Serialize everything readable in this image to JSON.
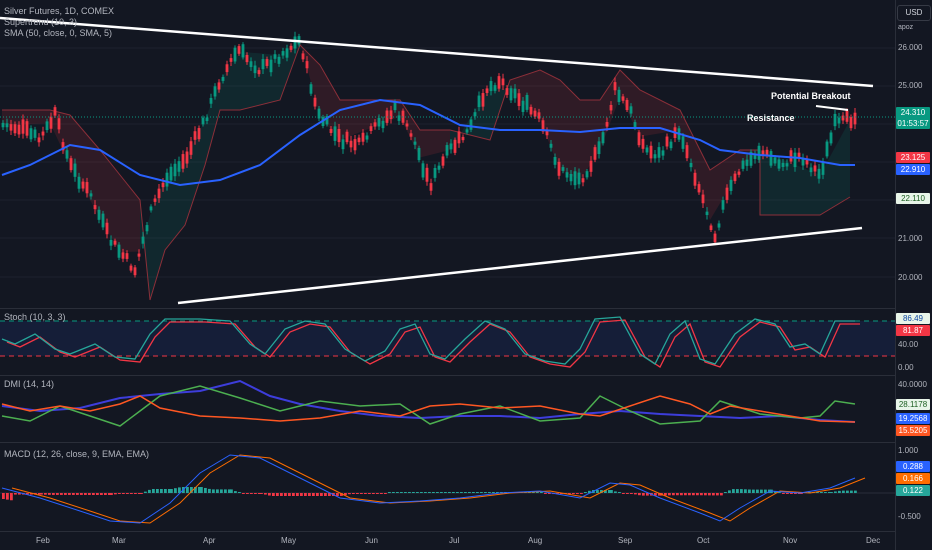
{
  "legend": {
    "main": "Silver Futures, 1D, COMEX",
    "supertrend": "Supertrend (10, 3)",
    "sma": "SMA (50, close, 0, SMA, 5)",
    "stoch": "Stoch (10, 3, 3)",
    "dmi": "DMI (14, 14)",
    "macd": "MACD (12, 26, close, 9, EMA, EMA)"
  },
  "scale": {
    "currency": "USD",
    "apoz": "apoz",
    "price_ticks": [
      "26.000",
      "25.000",
      "21.000",
      "20.000"
    ],
    "stoch_ticks": [
      "40.00",
      "0.00"
    ],
    "dmi_ticks": [
      "40.0000"
    ],
    "macd_ticks": [
      "1.000",
      "-0.500"
    ]
  },
  "tags": {
    "last_price": "24.310",
    "countdown": "01:53:57",
    "st_upper": "23.125",
    "sma_value": "22.910",
    "st_lower": "22.110",
    "stoch_k": "86.49",
    "stoch_d": "81.87",
    "dmi_plus": "28.1178",
    "adx": "19.2568",
    "dmi_minus": "15.5205",
    "macd_line": "0.288",
    "macd_signal": "0.166",
    "macd_hist": "0.122"
  },
  "annotations": {
    "breakout": "Potential Breakout",
    "resistance": "Resistance"
  },
  "time_axis": [
    "Feb",
    "Mar",
    "Apr",
    "May",
    "Jun",
    "Jul",
    "Aug",
    "Sep",
    "Oct",
    "Nov",
    "Dec"
  ],
  "colors": {
    "bg": "#131722",
    "up": "#089981",
    "down": "#f23645",
    "sma": "#2962ff",
    "stoch_k": "#2962ff",
    "stoch_d": "#ff6d00",
    "dmi_plus": "#4caf50",
    "dmi_minus": "#ff5722",
    "macd_line": "#2962ff",
    "macd_signal": "#ff6d00"
  }
}
